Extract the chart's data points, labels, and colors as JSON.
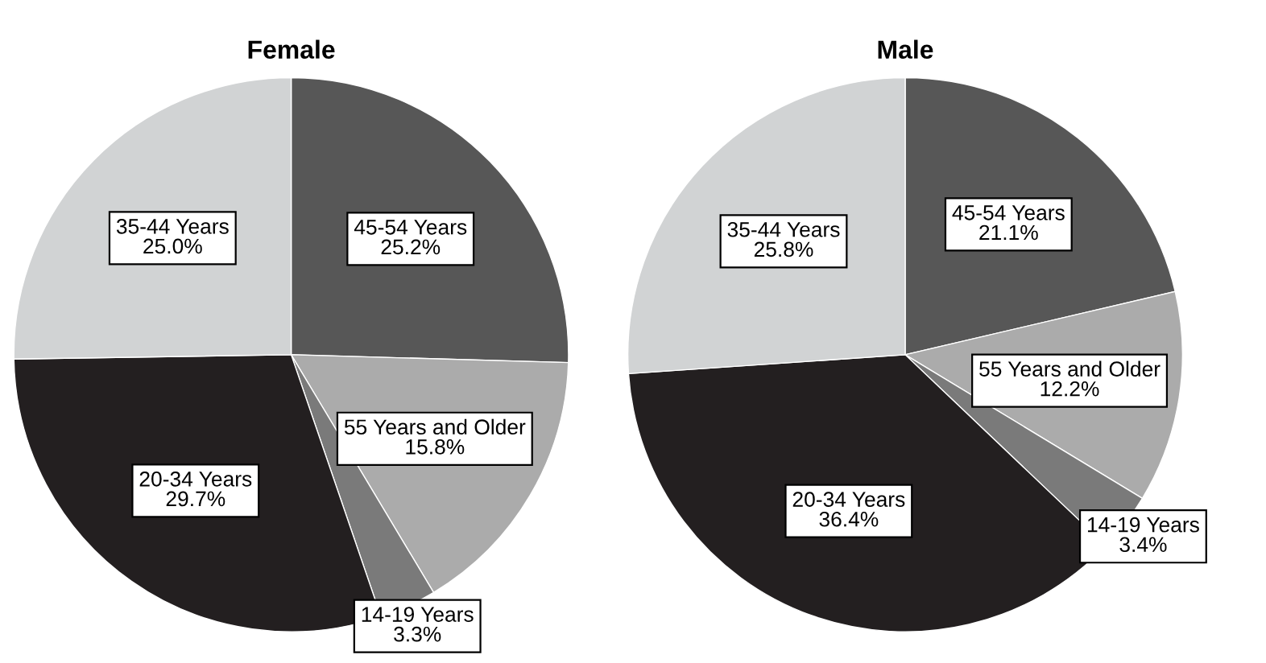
{
  "chart_data": [
    {
      "type": "pie",
      "title": "Female",
      "categories": [
        "45-54 Years",
        "55 Years and Older",
        "14-19 Years",
        "20-34 Years",
        "35-44 Years"
      ],
      "values": [
        25.2,
        15.8,
        3.3,
        29.7,
        25.0
      ],
      "value_labels": [
        "25.2%",
        "15.8%",
        "3.3%",
        "29.7%",
        "25.0%"
      ],
      "colors": [
        "#575757",
        "#ababab",
        "#7a7a7a",
        "#231f20",
        "#d1d3d4"
      ]
    },
    {
      "type": "pie",
      "title": "Male",
      "categories": [
        "45-54 Years",
        "55 Years and Older",
        "14-19 Years",
        "20-34 Years",
        "35-44 Years"
      ],
      "values": [
        21.1,
        12.2,
        3.4,
        36.4,
        25.8
      ],
      "value_labels": [
        "21.1%",
        "12.2%",
        "3.4%",
        "36.4%",
        "25.8%"
      ],
      "colors": [
        "#575757",
        "#ababab",
        "#7a7a7a",
        "#231f20",
        "#d1d3d4"
      ]
    }
  ]
}
